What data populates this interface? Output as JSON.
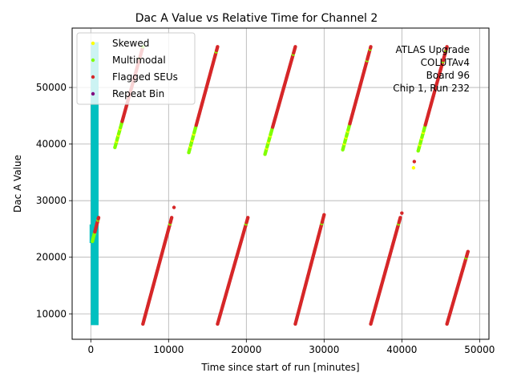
{
  "chart_data": {
    "type": "scatter",
    "title": "Dac A Value vs Relative Time for Channel 2",
    "xlabel": "Time since start of run [minutes]",
    "ylabel": "Dac A Value",
    "xlim": [
      -2400,
      51200
    ],
    "ylim": [
      5500,
      60500
    ],
    "xticks": [
      0,
      10000,
      20000,
      30000,
      40000,
      50000
    ],
    "xtick_labels": [
      "0",
      "10000",
      "20000",
      "30000",
      "40000",
      "50000"
    ],
    "yticks": [
      10000,
      20000,
      30000,
      40000,
      50000
    ],
    "ytick_labels": [
      "10000",
      "20000",
      "30000",
      "40000",
      "50000"
    ],
    "grid": true,
    "legend_position": "top-left",
    "annotation_lines": [
      "ATLAS Upgrade",
      "COLUTAv4",
      "Board 96",
      "Chip 1, Run 232"
    ],
    "series_styles": {
      "all_data": "#00c0c0",
      "skewed": "#ffff00",
      "multimodal": "#80ff00",
      "flagged": "#d62728",
      "repeat": "#800080"
    },
    "legend": [
      {
        "label": "Skewed",
        "color": "#ffff00"
      },
      {
        "label": "Multimodal",
        "color": "#80ff00"
      },
      {
        "label": "Flagged SEUs",
        "color": "#d62728"
      },
      {
        "label": "Repeat Bin",
        "color": "#800080"
      }
    ],
    "all_data_column": {
      "x": [
        0,
        1000
      ],
      "y": [
        8000,
        58000
      ]
    },
    "ramps": [
      {
        "x_start": 3100,
        "x_end": 6700,
        "y_start": 39400,
        "y_end": 57200,
        "flagged_from": 0.25
      },
      {
        "x_start": 12600,
        "x_end": 16300,
        "y_start": 38500,
        "y_end": 57200,
        "flagged_from": 0.25
      },
      {
        "x_start": 22400,
        "x_end": 26300,
        "y_start": 38200,
        "y_end": 57200,
        "flagged_from": 0.25
      },
      {
        "x_start": 32400,
        "x_end": 36000,
        "y_start": 39000,
        "y_end": 57200,
        "flagged_from": 0.25
      },
      {
        "x_start": 42100,
        "x_end": 45800,
        "y_start": 38800,
        "y_end": 57200,
        "flagged_from": 0.25
      },
      {
        "x_start": 200,
        "x_end": 1000,
        "y_start": 22800,
        "y_end": 27000,
        "flagged_from": 0.4
      },
      {
        "x_start": 6700,
        "x_end": 10400,
        "y_start": 8200,
        "y_end": 27000,
        "flagged_from": 0.0
      },
      {
        "x_start": 16300,
        "x_end": 20200,
        "y_start": 8200,
        "y_end": 27000,
        "flagged_from": 0.0
      },
      {
        "x_start": 26300,
        "x_end": 30000,
        "y_start": 8200,
        "y_end": 27500,
        "flagged_from": 0.0
      },
      {
        "x_start": 36000,
        "x_end": 39800,
        "y_start": 8200,
        "y_end": 27000,
        "flagged_from": 0.0
      },
      {
        "x_start": 45800,
        "x_end": 48500,
        "y_start": 8200,
        "y_end": 21000,
        "flagged_from": 0.0
      }
    ],
    "outliers": [
      {
        "x": 10700,
        "y": 28800,
        "series": "flagged"
      },
      {
        "x": 41600,
        "y": 36900,
        "series": "flagged"
      },
      {
        "x": 41500,
        "y": 35800,
        "series": "skewed"
      },
      {
        "x": 40000,
        "y": 27800,
        "series": "flagged"
      }
    ]
  }
}
